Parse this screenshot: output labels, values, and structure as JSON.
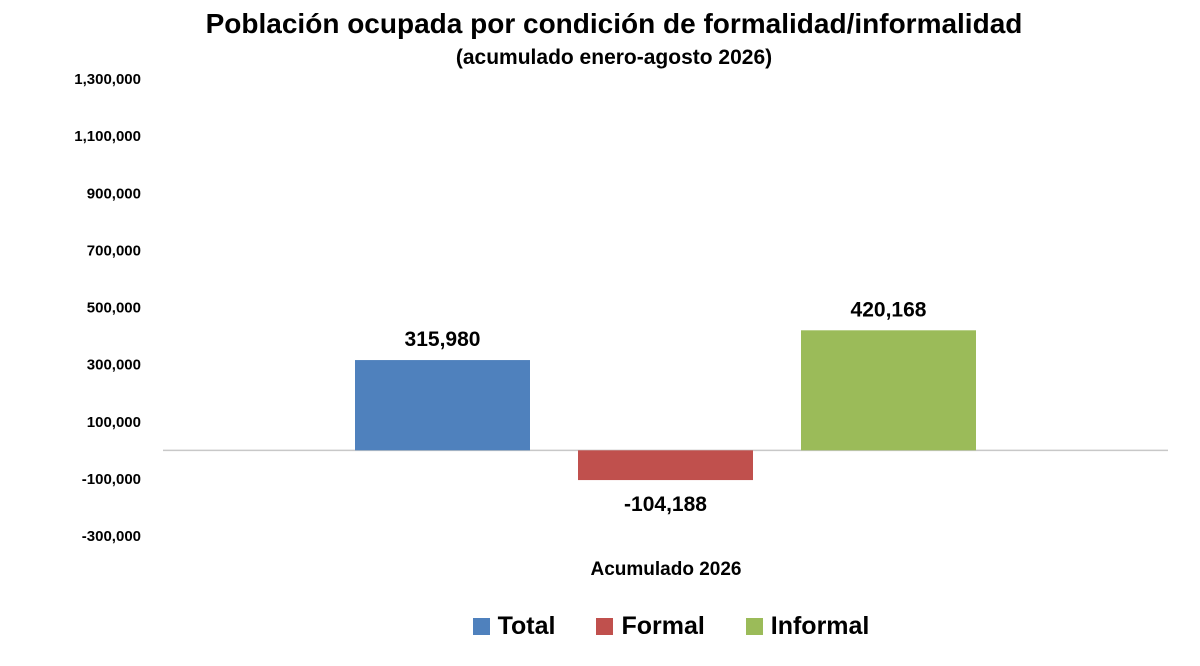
{
  "chart_data": {
    "type": "bar",
    "title": "Población ocupada por condición de formalidad/informalidad",
    "subtitle": "(acumulado  enero-agosto 2026)",
    "categories": [
      "Acumulado 2026"
    ],
    "series": [
      {
        "name": "Total",
        "values": [
          315980
        ],
        "label": "315,980",
        "color": "#4F81BD"
      },
      {
        "name": "Formal",
        "values": [
          -104188
        ],
        "label": "-104,188",
        "color": "#C0504D"
      },
      {
        "name": "Informal",
        "values": [
          420168
        ],
        "label": "420,168",
        "color": "#9BBB59"
      }
    ],
    "ylim": [
      -300000,
      1300000
    ],
    "yticks": [
      1300000,
      1100000,
      900000,
      700000,
      500000,
      300000,
      100000,
      -100000,
      -300000
    ],
    "ytick_labels": [
      "1,300,000",
      "1,100,000",
      "900,000",
      "700,000",
      "500,000",
      "300,000",
      "100,000",
      "-100,000",
      "-300,000"
    ],
    "grid": false,
    "legend_position": "bottom"
  }
}
